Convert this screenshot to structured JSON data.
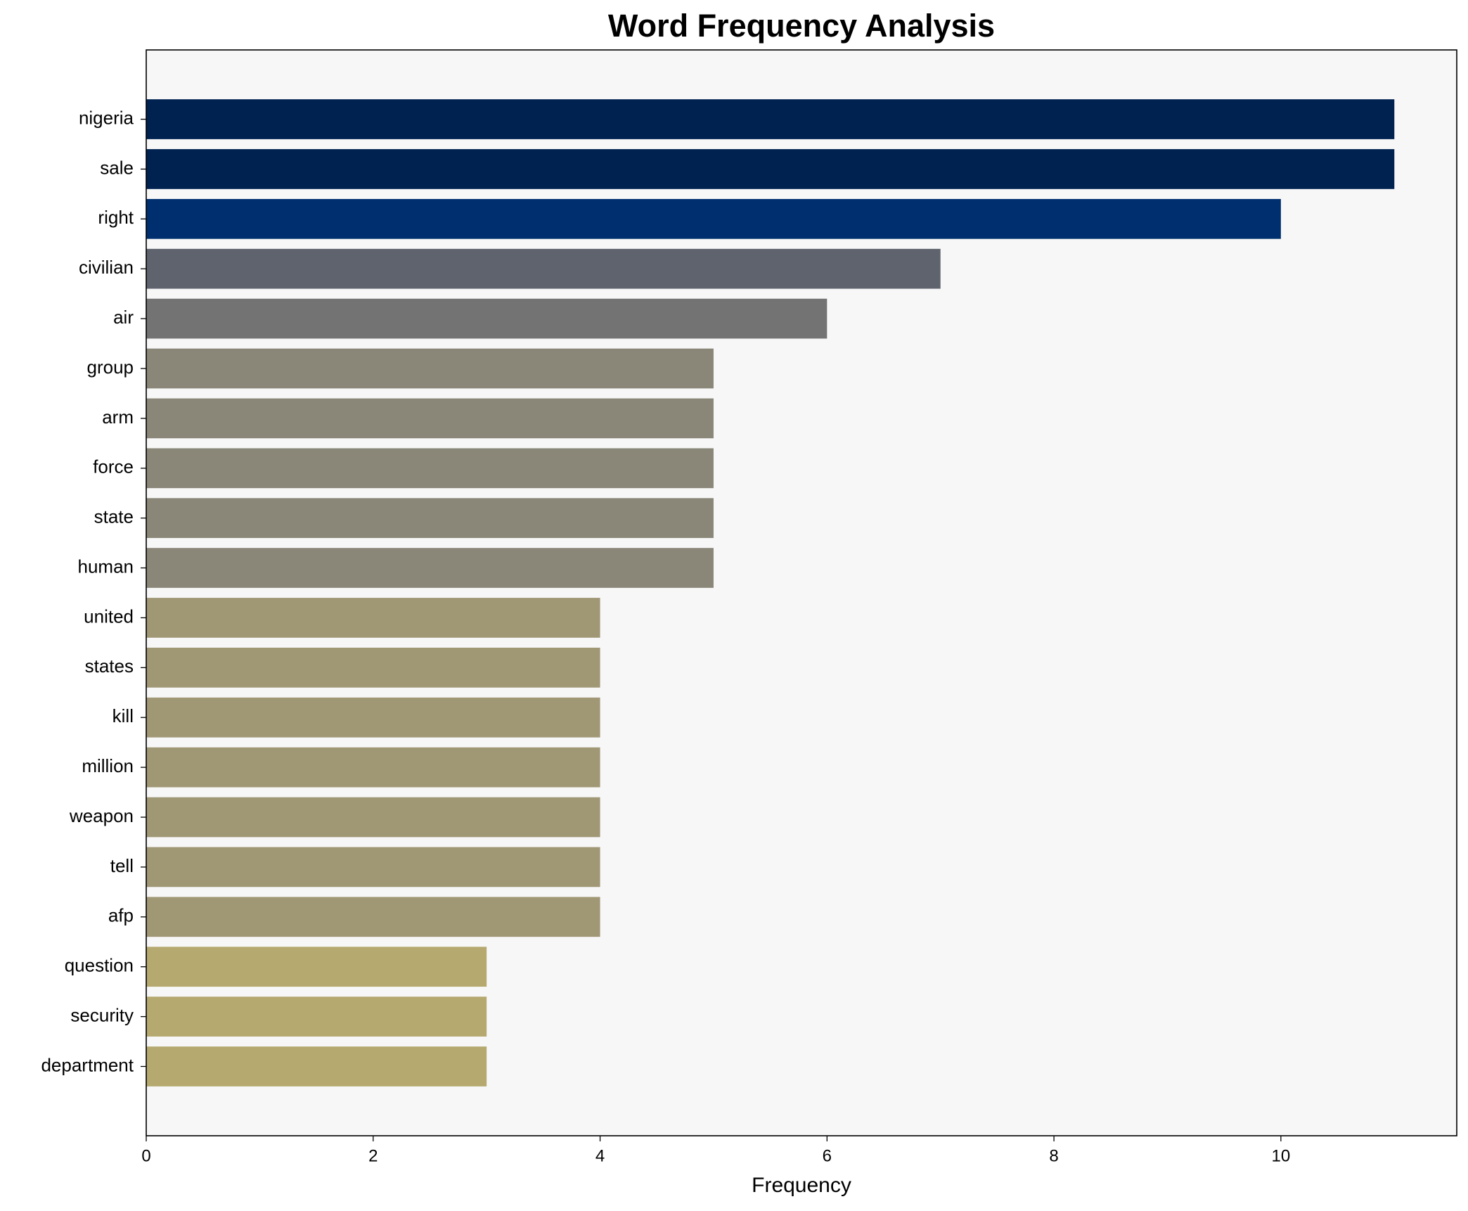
{
  "chart_data": {
    "type": "barh",
    "title": "Word Frequency Analysis",
    "x_label": "Frequency",
    "categories": [
      "nigeria",
      "sale",
      "right",
      "civilian",
      "air",
      "group",
      "arm",
      "force",
      "state",
      "human",
      "united",
      "states",
      "kill",
      "million",
      "weapon",
      "tell",
      "afp",
      "question",
      "security",
      "department"
    ],
    "values": [
      11,
      11,
      10,
      7,
      6,
      5,
      5,
      5,
      5,
      5,
      4,
      4,
      4,
      4,
      4,
      4,
      4,
      3,
      3,
      3
    ],
    "colors": [
      "#002251",
      "#002251",
      "#002f6f",
      "#5f636e",
      "#737374",
      "#8a8779",
      "#8a8779",
      "#8a8779",
      "#8a8779",
      "#8a8779",
      "#a09775",
      "#a09775",
      "#a09775",
      "#a09775",
      "#a09775",
      "#a09775",
      "#a09775",
      "#b5a96f",
      "#b5a96f",
      "#b5a96f"
    ],
    "xlim": [
      0,
      11.55
    ],
    "xticks": [
      0,
      2,
      4,
      6,
      8,
      10
    ]
  }
}
